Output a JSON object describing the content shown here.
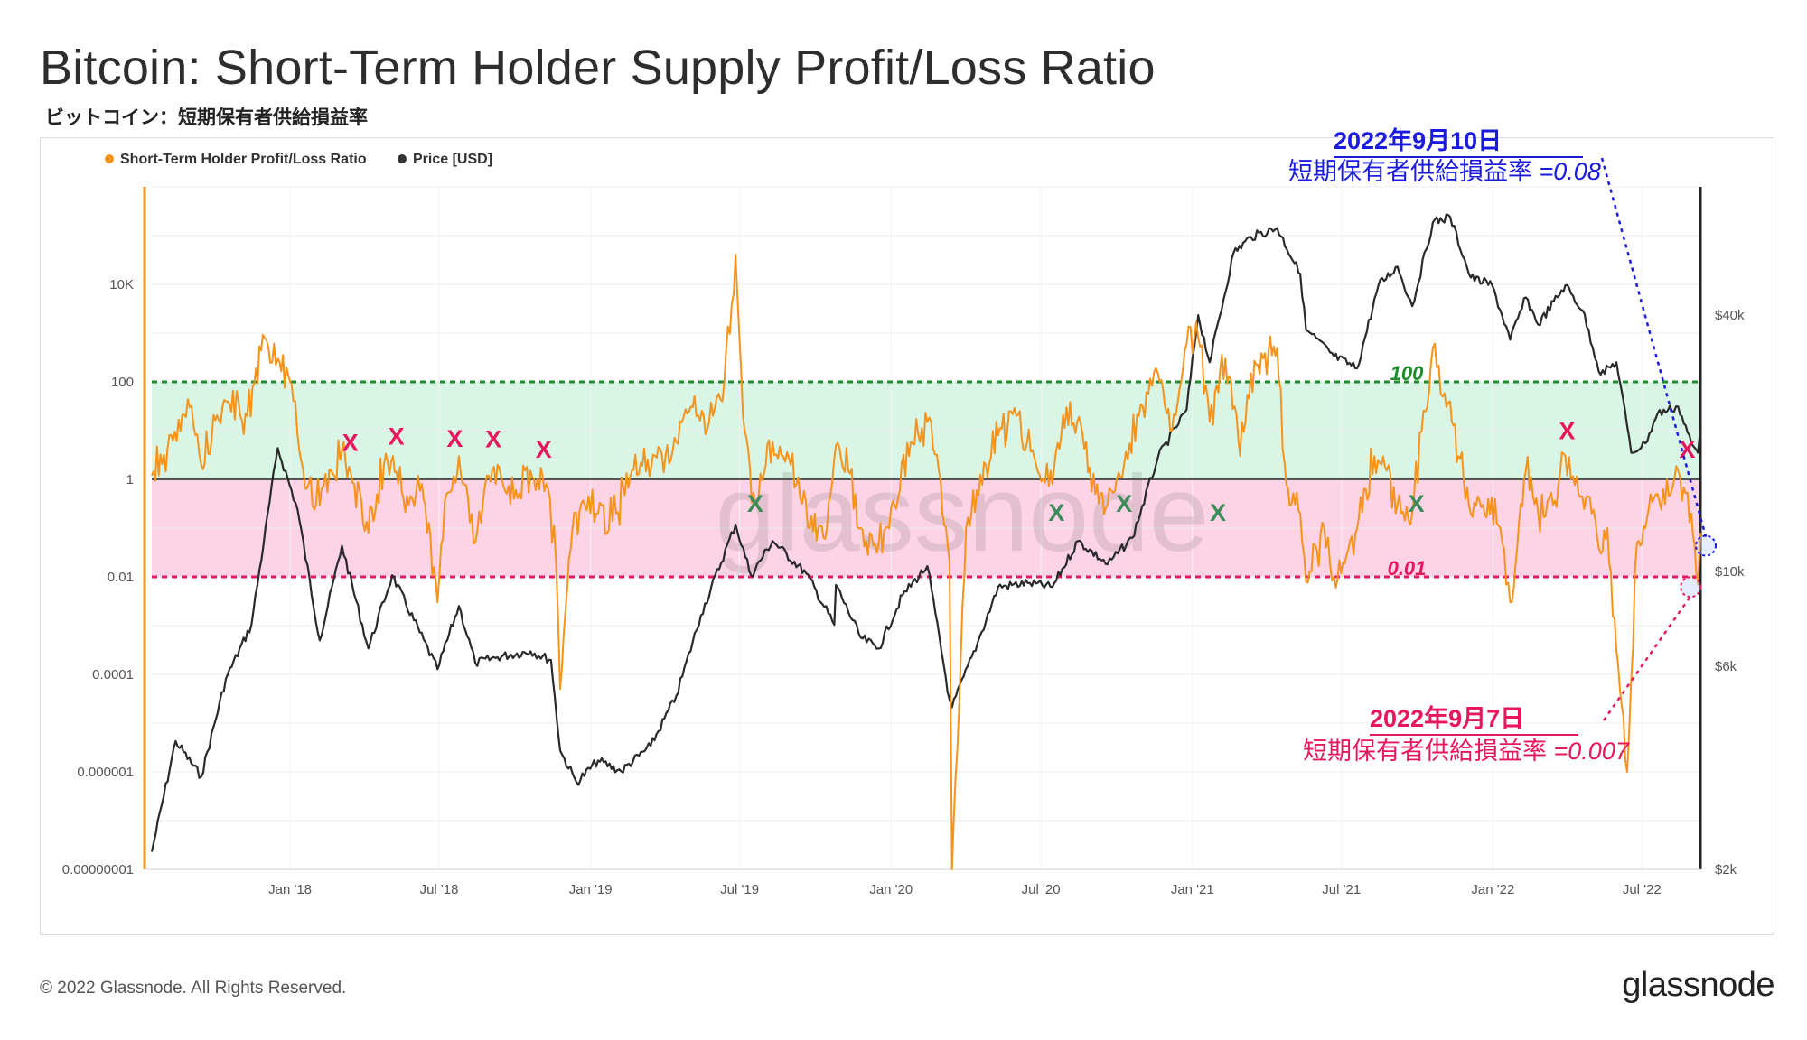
{
  "title": "Bitcoin: Short-Term Holder Supply Profit/Loss Ratio",
  "subtitle": "ビットコイン：短期保有者供給損益率",
  "footer": {
    "copyright": "© 2022 Glassnode. All Rights Reserved.",
    "logo": "glassnode"
  },
  "watermark": "glassnode",
  "legend": [
    {
      "label": "Short-Term Holder Profit/Loss Ratio",
      "color": "#f7931a"
    },
    {
      "label": "Price [USD]",
      "color": "#333333"
    }
  ],
  "annotations": {
    "upper": {
      "date": "2022年9月10日",
      "text": "短期保有者供給損益率 ",
      "value": "=0.08",
      "color": "#1a1ae0"
    },
    "lower": {
      "date": "2022年9月7日",
      "text": "短期保有者供給損益率 ",
      "value": "=0.007",
      "color": "#e8175d"
    }
  },
  "colors": {
    "profit_band": "#d8f5e6",
    "loss_band": "#fdd3e6",
    "green_line": "#1e8c2c",
    "pink_line": "#e8175d",
    "ratio_line": "#f7931a",
    "price_line": "#2a2a2a",
    "red_x": "#e8175d",
    "green_x": "#3c8c5a"
  },
  "chart_data": {
    "type": "line",
    "x_range": [
      "2017-07-17",
      "2022-09-10"
    ],
    "x_ticks": [
      {
        "label": "Jan '18",
        "date": "2018-01-01"
      },
      {
        "label": "Jul '18",
        "date": "2018-07-01"
      },
      {
        "label": "Jan '19",
        "date": "2019-01-01"
      },
      {
        "label": "Jul '19",
        "date": "2019-07-01"
      },
      {
        "label": "Jan '20",
        "date": "2020-01-01"
      },
      {
        "label": "Jul '20",
        "date": "2020-07-01"
      },
      {
        "label": "Jan '21",
        "date": "2021-01-01"
      },
      {
        "label": "Jul '21",
        "date": "2021-07-01"
      },
      {
        "label": "Jan '22",
        "date": "2022-01-01"
      },
      {
        "label": "Jul '22",
        "date": "2022-07-01"
      }
    ],
    "left_axis": {
      "scale": "log",
      "range": [
        1e-08,
        1000000.0
      ],
      "ticks": [
        {
          "label": "10K",
          "value": 10000
        },
        {
          "label": "100",
          "value": 100
        },
        {
          "label": "1",
          "value": 1
        },
        {
          "label": "0.01",
          "value": 0.01
        },
        {
          "label": "0.0001",
          "value": 0.0001
        },
        {
          "label": "0.000001",
          "value": 1e-06
        },
        {
          "label": "0.00000001",
          "value": 1e-08
        }
      ]
    },
    "right_axis": {
      "scale": "log",
      "range": [
        2000,
        80000
      ],
      "ticks": [
        {
          "label": "$40k",
          "value": 40000
        },
        {
          "label": "$10k",
          "value": 10000
        },
        {
          "label": "$6k",
          "value": 6000
        },
        {
          "label": "$2k",
          "value": 2000
        }
      ]
    },
    "reference_lines": [
      {
        "label": "100",
        "value": 100
      },
      {
        "label": "0.01",
        "value": 0.01
      }
    ],
    "bands": [
      {
        "from": 1,
        "to": 100,
        "name": "profit"
      },
      {
        "from": 0.01,
        "to": 1,
        "name": "loss"
      }
    ],
    "series": [
      {
        "name": "Short-Term Holder Profit/Loss Ratio",
        "axis": "left",
        "points": [
          [
            "2017-07-17",
            1.2
          ],
          [
            "2017-08-05",
            4
          ],
          [
            "2017-09-01",
            30
          ],
          [
            "2017-09-15",
            2
          ],
          [
            "2017-10-15",
            40
          ],
          [
            "2017-11-10",
            20
          ],
          [
            "2017-12-01",
            800
          ],
          [
            "2017-12-17",
            300
          ],
          [
            "2018-01-05",
            40
          ],
          [
            "2018-01-17",
            1.5
          ],
          [
            "2018-02-06",
            0.3
          ],
          [
            "2018-02-20",
            1.5
          ],
          [
            "2018-03-05",
            4
          ],
          [
            "2018-03-20",
            0.8
          ],
          [
            "2018-04-06",
            0.08
          ],
          [
            "2018-04-25",
            2
          ],
          [
            "2018-05-06",
            3
          ],
          [
            "2018-05-25",
            0.3
          ],
          [
            "2018-06-10",
            0.8
          ],
          [
            "2018-06-29",
            0.003
          ],
          [
            "2018-07-10",
            0.5
          ],
          [
            "2018-07-25",
            3
          ],
          [
            "2018-08-14",
            0.05
          ],
          [
            "2018-08-28",
            1.2
          ],
          [
            "2018-09-10",
            2
          ],
          [
            "2018-09-30",
            0.4
          ],
          [
            "2018-10-20",
            1.5
          ],
          [
            "2018-11-08",
            0.8
          ],
          [
            "2018-11-20",
            0.02
          ],
          [
            "2018-11-25",
            5e-05
          ],
          [
            "2018-12-10",
            0.1
          ],
          [
            "2018-12-25",
            0.3
          ],
          [
            "2019-01-10",
            0.2
          ],
          [
            "2019-02-01",
            0.2
          ],
          [
            "2019-02-20",
            1.5
          ],
          [
            "2019-04-02",
            3
          ],
          [
            "2019-05-05",
            30
          ],
          [
            "2019-05-25",
            15
          ],
          [
            "2019-06-10",
            40
          ],
          [
            "2019-06-26",
            40000
          ],
          [
            "2019-07-05",
            20
          ],
          [
            "2019-07-20",
            0.3
          ],
          [
            "2019-08-10",
            6
          ],
          [
            "2019-09-01",
            2
          ],
          [
            "2019-09-24",
            0.1
          ],
          [
            "2019-10-15",
            0.1
          ],
          [
            "2019-10-26",
            5
          ],
          [
            "2019-11-10",
            1.5
          ],
          [
            "2019-11-25",
            0.1
          ],
          [
            "2019-12-17",
            0.05
          ],
          [
            "2020-01-05",
            0.3
          ],
          [
            "2020-01-25",
            6
          ],
          [
            "2020-02-14",
            15
          ],
          [
            "2020-02-28",
            1.5
          ],
          [
            "2020-03-12",
            0.02
          ],
          [
            "2020-03-15",
            1e-08
          ],
          [
            "2020-04-01",
            0.1
          ],
          [
            "2020-04-25",
            2
          ],
          [
            "2020-05-10",
            8
          ],
          [
            "2020-06-01",
            20
          ],
          [
            "2020-06-25",
            2
          ],
          [
            "2020-07-15",
            0.8
          ],
          [
            "2020-08-01",
            30
          ],
          [
            "2020-08-25",
            6
          ],
          [
            "2020-09-05",
            0.5
          ],
          [
            "2020-09-20",
            0.3
          ],
          [
            "2020-10-10",
            2
          ],
          [
            "2020-10-28",
            20
          ],
          [
            "2020-11-20",
            150
          ],
          [
            "2020-12-05",
            10
          ],
          [
            "2020-12-25",
            600
          ],
          [
            "2021-01-08",
            800
          ],
          [
            "2021-01-22",
            15
          ],
          [
            "2021-02-10",
            300
          ],
          [
            "2021-02-28",
            3
          ],
          [
            "2021-03-13",
            150
          ],
          [
            "2021-04-14",
            500
          ],
          [
            "2021-04-25",
            0.8
          ],
          [
            "2021-05-12",
            0.2
          ],
          [
            "2021-05-19",
            0.008
          ],
          [
            "2021-06-10",
            0.1
          ],
          [
            "2021-06-22",
            0.01
          ],
          [
            "2021-07-20",
            0.1
          ],
          [
            "2021-08-10",
            3
          ],
          [
            "2021-08-25",
            1.5
          ],
          [
            "2021-09-07",
            0.3
          ],
          [
            "2021-09-25",
            0.2
          ],
          [
            "2021-10-20",
            500
          ],
          [
            "2021-11-01",
            50
          ],
          [
            "2021-11-10",
            40
          ],
          [
            "2021-11-20",
            3
          ],
          [
            "2021-12-05",
            0.2
          ],
          [
            "2021-12-20",
            0.3
          ],
          [
            "2022-01-10",
            0.1
          ],
          [
            "2022-01-22",
            0.003
          ],
          [
            "2022-02-10",
            1.5
          ],
          [
            "2022-02-25",
            0.2
          ],
          [
            "2022-03-15",
            0.3
          ],
          [
            "2022-03-30",
            3
          ],
          [
            "2022-04-15",
            0.5
          ],
          [
            "2022-05-01",
            0.2
          ],
          [
            "2022-05-12",
            0.03
          ],
          [
            "2022-05-20",
            0.1
          ],
          [
            "2022-06-13",
            1e-06
          ],
          [
            "2022-06-25",
            0.05
          ],
          [
            "2022-07-05",
            0.1
          ],
          [
            "2022-07-20",
            0.5
          ],
          [
            "2022-08-05",
            0.5
          ],
          [
            "2022-08-14",
            1.5
          ],
          [
            "2022-08-30",
            0.2
          ],
          [
            "2022-09-07",
            0.007
          ],
          [
            "2022-09-10",
            0.08
          ]
        ]
      },
      {
        "name": "Price [USD]",
        "axis": "right",
        "points": [
          [
            "2017-07-17",
            2200
          ],
          [
            "2017-08-15",
            4000
          ],
          [
            "2017-09-15",
            3300
          ],
          [
            "2017-10-15",
            5600
          ],
          [
            "2017-11-15",
            7500
          ],
          [
            "2017-12-17",
            19500
          ],
          [
            "2018-01-10",
            14000
          ],
          [
            "2018-02-06",
            6900
          ],
          [
            "2018-03-05",
            11500
          ],
          [
            "2018-04-06",
            6600
          ],
          [
            "2018-05-05",
            9800
          ],
          [
            "2018-06-29",
            5900
          ],
          [
            "2018-07-25",
            8300
          ],
          [
            "2018-08-14",
            6100
          ],
          [
            "2018-09-10",
            6300
          ],
          [
            "2018-10-20",
            6500
          ],
          [
            "2018-11-14",
            6200
          ],
          [
            "2018-11-25",
            3800
          ],
          [
            "2018-12-15",
            3200
          ],
          [
            "2019-01-10",
            3600
          ],
          [
            "2019-02-07",
            3400
          ],
          [
            "2019-03-15",
            3900
          ],
          [
            "2019-04-15",
            5100
          ],
          [
            "2019-05-15",
            7900
          ],
          [
            "2019-06-26",
            12900
          ],
          [
            "2019-07-15",
            9800
          ],
          [
            "2019-08-10",
            11800
          ],
          [
            "2019-09-20",
            9900
          ],
          [
            "2019-10-24",
            7500
          ],
          [
            "2019-10-26",
            9300
          ],
          [
            "2019-11-25",
            7000
          ],
          [
            "2019-12-17",
            6600
          ],
          [
            "2020-01-15",
            8800
          ],
          [
            "2020-02-14",
            10300
          ],
          [
            "2020-03-12",
            5000
          ],
          [
            "2020-03-15",
            4800
          ],
          [
            "2020-04-15",
            6800
          ],
          [
            "2020-05-10",
            9200
          ],
          [
            "2020-06-15",
            9400
          ],
          [
            "2020-07-15",
            9200
          ],
          [
            "2020-08-15",
            11800
          ],
          [
            "2020-09-20",
            10400
          ],
          [
            "2020-10-20",
            12000
          ],
          [
            "2020-11-20",
            18500
          ],
          [
            "2020-12-25",
            24000
          ],
          [
            "2021-01-08",
            40000
          ],
          [
            "2021-01-22",
            31000
          ],
          [
            "2021-02-20",
            56000
          ],
          [
            "2021-03-13",
            61000
          ],
          [
            "2021-04-14",
            64000
          ],
          [
            "2021-05-12",
            50000
          ],
          [
            "2021-05-19",
            37000
          ],
          [
            "2021-06-22",
            32000
          ],
          [
            "2021-07-20",
            30000
          ],
          [
            "2021-08-15",
            47000
          ],
          [
            "2021-09-07",
            52000
          ],
          [
            "2021-09-25",
            42000
          ],
          [
            "2021-10-20",
            66000
          ],
          [
            "2021-11-10",
            68000
          ],
          [
            "2021-12-05",
            49000
          ],
          [
            "2021-12-31",
            47000
          ],
          [
            "2022-01-22",
            35000
          ],
          [
            "2022-02-10",
            44000
          ],
          [
            "2022-02-25",
            38000
          ],
          [
            "2022-03-30",
            47000
          ],
          [
            "2022-04-20",
            41000
          ],
          [
            "2022-05-12",
            29000
          ],
          [
            "2022-05-31",
            31000
          ],
          [
            "2022-06-13",
            22000
          ],
          [
            "2022-06-18",
            19000
          ],
          [
            "2022-07-05",
            20000
          ],
          [
            "2022-07-20",
            23500
          ],
          [
            "2022-08-14",
            24400
          ],
          [
            "2022-08-30",
            20000
          ],
          [
            "2022-09-07",
            19000
          ],
          [
            "2022-09-10",
            21600
          ]
        ]
      }
    ],
    "markers": {
      "red_x_dates": [
        "2018-03-15",
        "2018-05-10",
        "2018-07-20",
        "2018-09-05",
        "2018-11-05",
        "2022-04-01",
        "2022-08-25"
      ],
      "green_x_dates": [
        "2019-07-20",
        "2020-07-20",
        "2020-10-10",
        "2021-02-01",
        "2021-09-30"
      ],
      "x_glyph": "X",
      "highlighted_points": [
        {
          "date": "2022-09-10",
          "value": 0.08,
          "annotation": "upper"
        },
        {
          "date": "2022-09-07",
          "value": 0.007,
          "annotation": "lower"
        }
      ]
    }
  }
}
